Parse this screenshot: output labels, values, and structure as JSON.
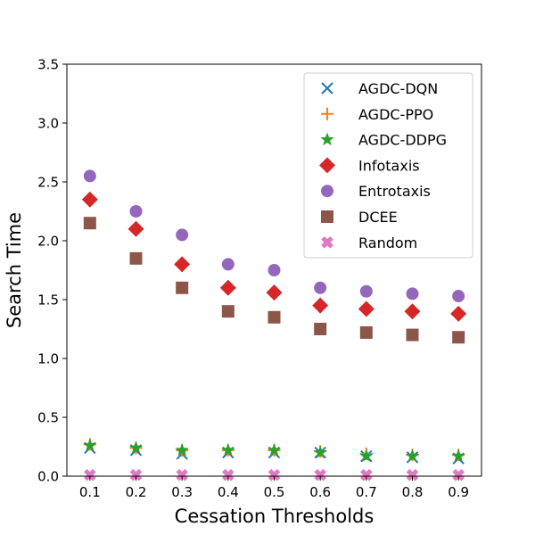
{
  "chart_data": {
    "type": "scatter",
    "title": "",
    "xlabel": "Cessation Thresholds",
    "ylabel": "Search Time",
    "x": [
      0.1,
      0.2,
      0.3,
      0.4,
      0.5,
      0.6,
      0.7,
      0.8,
      0.9
    ],
    "x_tick_labels": [
      "0.1",
      "0.2",
      "0.3",
      "0.4",
      "0.5",
      "0.6",
      "0.7",
      "0.8",
      "0.9"
    ],
    "y_ticks": [
      0.0,
      0.5,
      1.0,
      1.5,
      2.0,
      2.5,
      3.0,
      3.5
    ],
    "y_tick_labels": [
      "0.0",
      "0.5",
      "1.0",
      "1.5",
      "2.0",
      "2.5",
      "3.0",
      "3.5"
    ],
    "xlim": [
      0.05,
      0.95
    ],
    "ylim": [
      0,
      3.5
    ],
    "grid": false,
    "legend_position": "top-right",
    "series": [
      {
        "name": "AGDC-DQN",
        "marker": "x",
        "color": "#1f77b4",
        "values": [
          0.24,
          0.22,
          0.19,
          0.2,
          0.2,
          0.2,
          0.17,
          0.16,
          0.15
        ]
      },
      {
        "name": "AGDC-PPO",
        "marker": "plus",
        "color": "#ff7f0e",
        "values": [
          0.27,
          0.24,
          0.22,
          0.22,
          0.22,
          0.21,
          0.19,
          0.18,
          0.18
        ]
      },
      {
        "name": "AGDC-DDPG",
        "marker": "star",
        "color": "#2ca02c",
        "values": [
          0.26,
          0.24,
          0.22,
          0.22,
          0.22,
          0.2,
          0.17,
          0.17,
          0.17
        ]
      },
      {
        "name": "Infotaxis",
        "marker": "diamond",
        "color": "#d62728",
        "values": [
          2.35,
          2.1,
          1.8,
          1.6,
          1.56,
          1.45,
          1.42,
          1.4,
          1.38
        ]
      },
      {
        "name": "Entrotaxis",
        "marker": "circle",
        "color": "#9467bd",
        "values": [
          2.55,
          2.25,
          2.05,
          1.8,
          1.75,
          1.6,
          1.57,
          1.55,
          1.53
        ]
      },
      {
        "name": "DCEE",
        "marker": "square",
        "color": "#8c564b",
        "values": [
          2.15,
          1.85,
          1.6,
          1.4,
          1.35,
          1.25,
          1.22,
          1.2,
          1.18
        ]
      },
      {
        "name": "Random",
        "marker": "thick-x",
        "color": "#e377c2",
        "values": [
          0.01,
          0.01,
          0.01,
          0.01,
          0.01,
          0.01,
          0.01,
          0.01,
          0.01
        ]
      }
    ]
  }
}
